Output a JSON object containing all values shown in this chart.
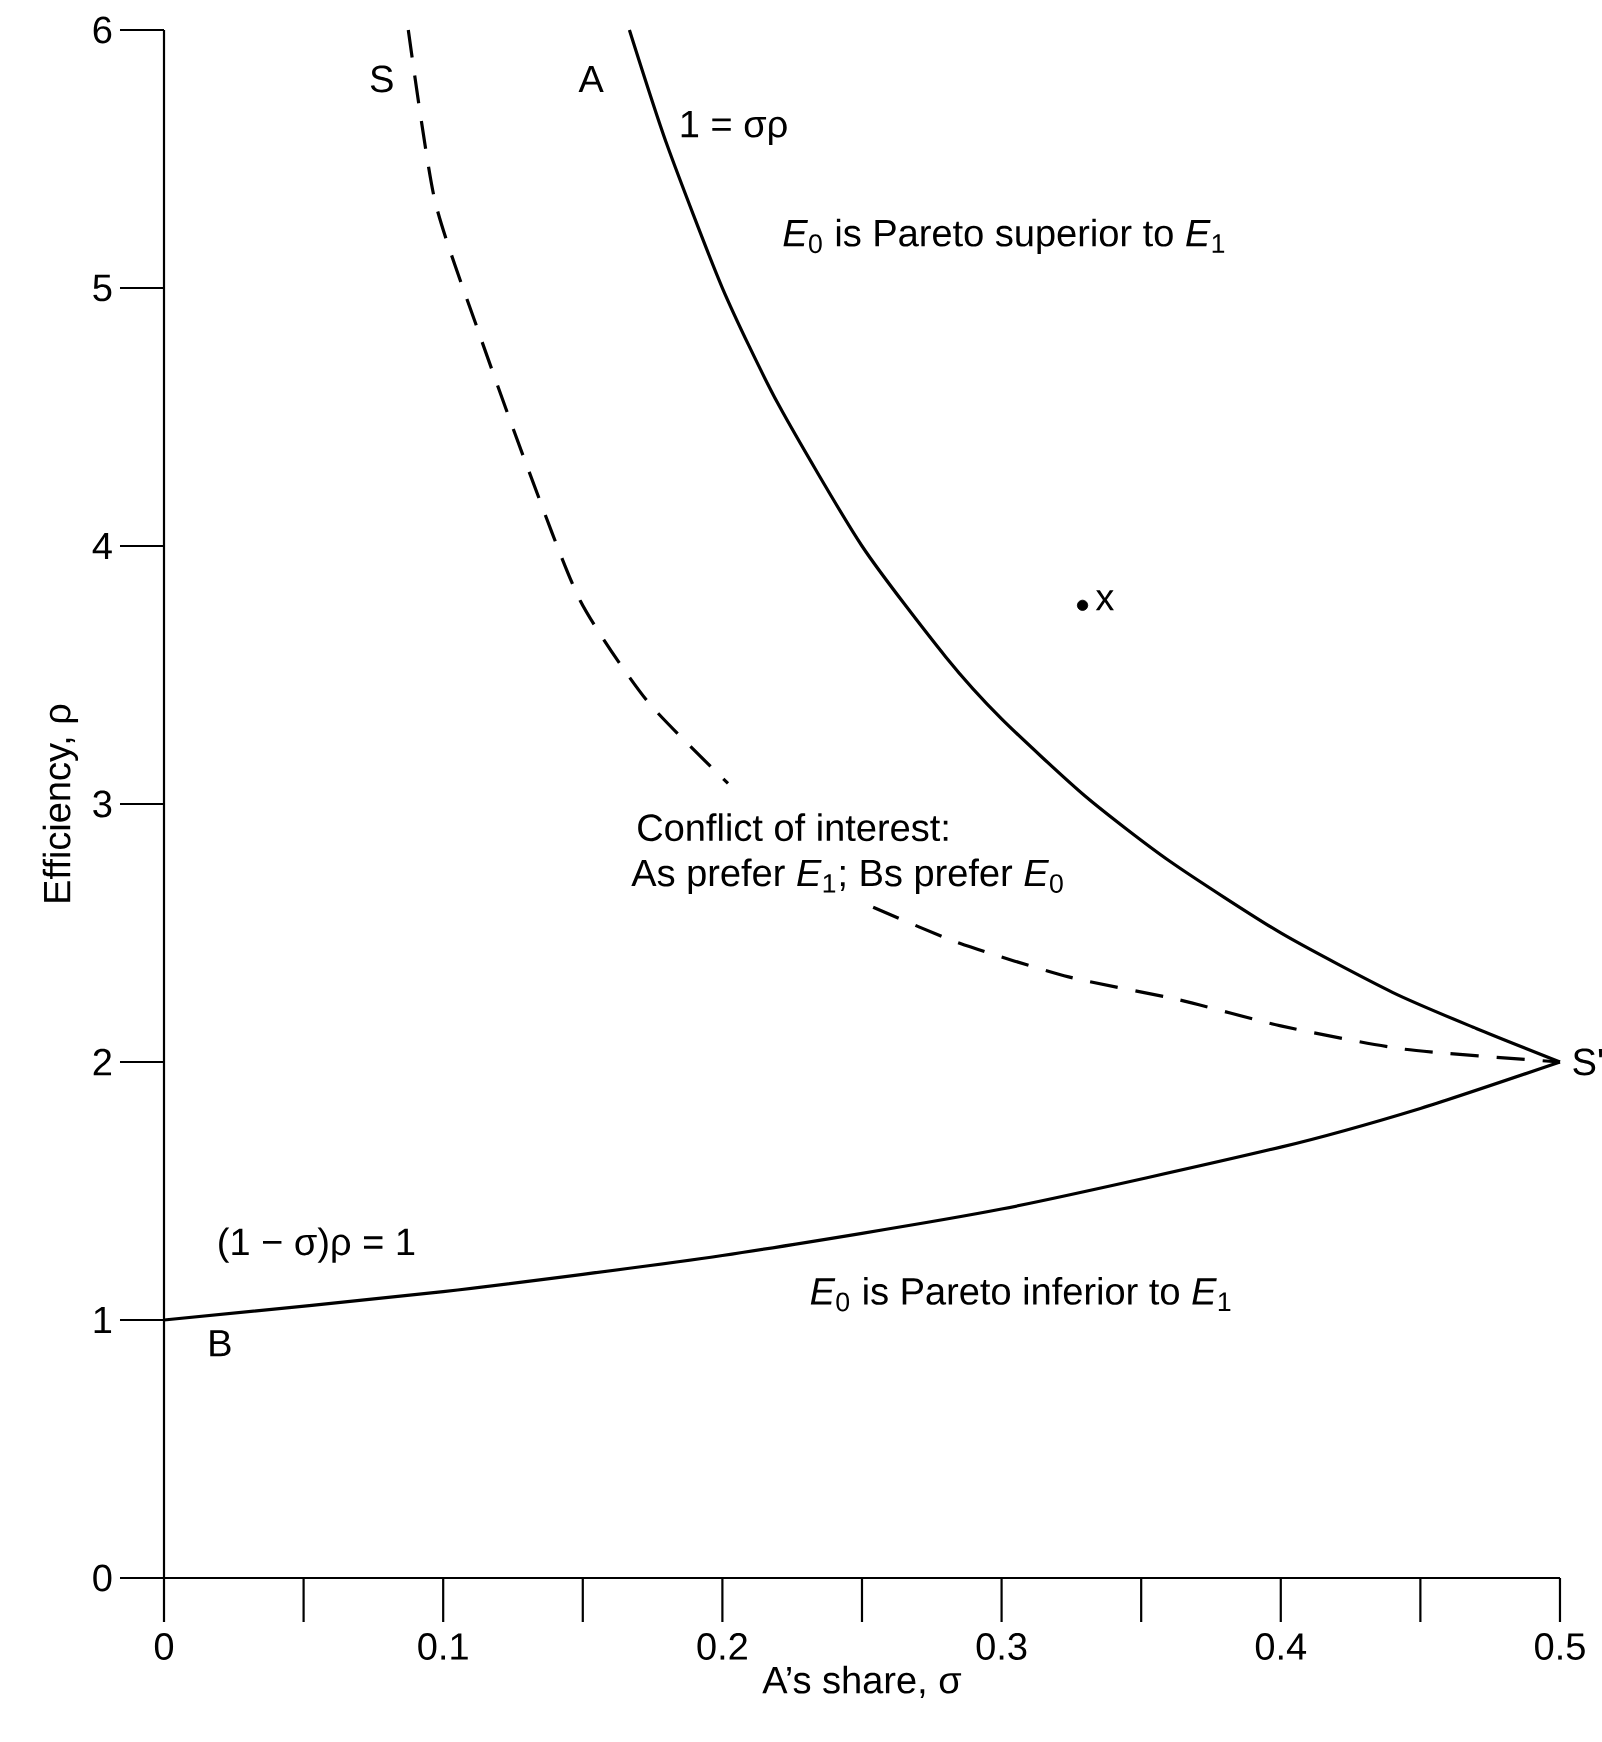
{
  "chart_data": {
    "type": "line",
    "xlabel": "A’s share, σ",
    "ylabel": "Efficiency, ρ",
    "xlim": [
      0,
      0.5
    ],
    "ylim": [
      0,
      6
    ],
    "xticks": [
      0,
      0.1,
      0.2,
      0.3,
      0.4,
      0.5
    ],
    "yticks": [
      0,
      1,
      2,
      3,
      4,
      5,
      6
    ],
    "series": [
      {
        "color": "#000000",
        "line_style": "solid",
        "x": [
          0.1667,
          0.18,
          0.2,
          0.22,
          0.25,
          0.28,
          0.3,
          0.33,
          0.36,
          0.4,
          0.44,
          0.47,
          0.5
        ],
        "values": [
          6,
          5.56,
          5,
          4.55,
          4,
          3.57,
          3.33,
          3.03,
          2.78,
          2.5,
          2.27,
          2.13,
          2
        ]
      },
      {
        "color": "#000000",
        "line_style": "solid",
        "x": [
          0,
          0.1,
          0.2,
          0.3,
          0.4,
          0.45,
          0.5
        ],
        "values": [
          1,
          1.11,
          1.25,
          1.43,
          1.67,
          1.82,
          2
        ]
      },
      {
        "color": "#000000",
        "line_style": "dashed",
        "x": [
          0.0875,
          0.097,
          0.113,
          0.13,
          0.149,
          0.173,
          0.202,
          0.228,
          0.254,
          0.285,
          0.324,
          0.364,
          0.4,
          0.444,
          0.5
        ],
        "values": [
          6,
          5.34,
          4.82,
          4.31,
          3.79,
          3.4,
          3.08,
          null,
          2.6,
          2.46,
          2.33,
          2.24,
          2.14,
          2.05,
          2.0
        ]
      },
      {
        "type": "scatter",
        "color": "#000000",
        "x": [
          0.329
        ],
        "values": [
          3.77
        ]
      }
    ],
    "annotations": [
      "S",
      "A",
      "1 = σρ",
      "*E*$_{0}$ is Pareto superior to *E*$_{1}$",
      "x",
      "Conflict of interest:",
      "As prefer *E*$_{1}$;  Bs prefer *E*$_{0}$",
      "S'",
      "(1 − σ)ρ = 1",
      "B",
      "*E*$_{0}$ is Pareto inferior to *E*$_{1}$"
    ]
  }
}
